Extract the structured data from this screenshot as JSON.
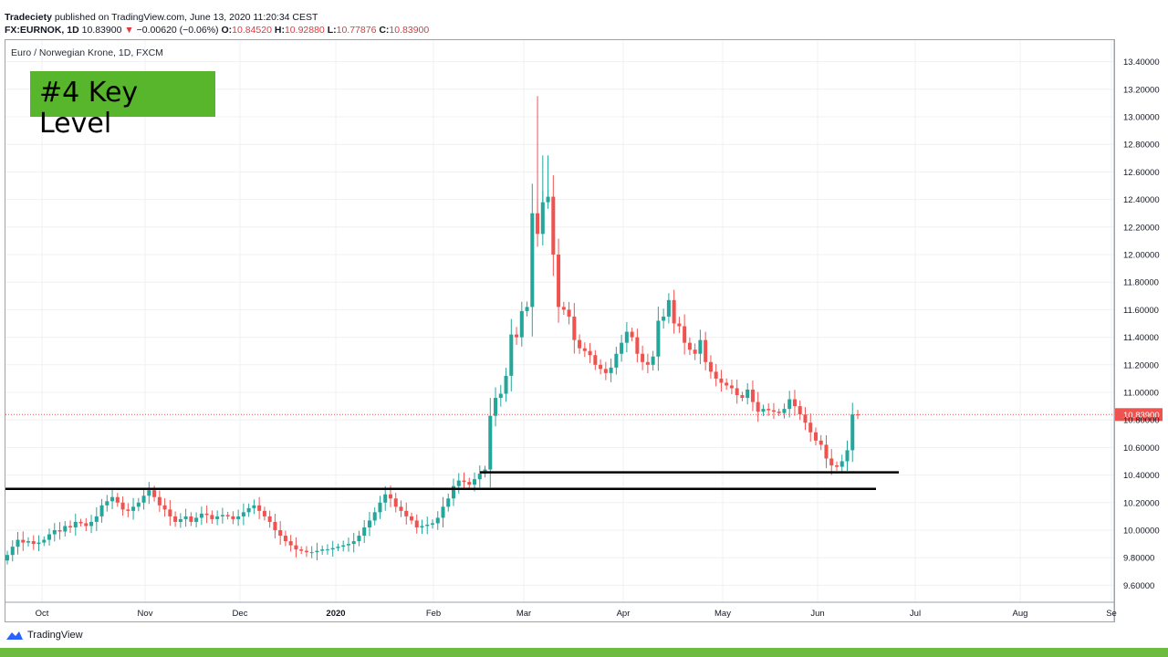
{
  "header": {
    "publisher": "Tradeciety",
    "published_text": "published on TradingView.com, June 13, 2020 11:20:34 CEST",
    "symbol": "FX:EURNOK, 1D",
    "last": "10.83900",
    "change": "−0.00620 (−0.06%)",
    "o_label": "O:",
    "o_value": "10.84520",
    "h_label": "H:",
    "h_value": "10.92880",
    "l_label": "L:",
    "l_value": "10.77876",
    "c_label": "C:",
    "c_value": "10.83900"
  },
  "chart_label": "Euro / Norwegian Krone, 1D, FXCM",
  "annotation": "#4 Key Level",
  "footer": {
    "brand": "TradingView"
  },
  "colors": {
    "up": "#26a69a",
    "down": "#ef5350",
    "annotation_bg": "#58b62c",
    "footer_bar": "#6dbb3f"
  },
  "chart_data": {
    "type": "candlestick",
    "title": "Euro / Norwegian Krone, 1D, FXCM",
    "x_labels": [
      "Oct",
      "Nov",
      "Dec",
      "2020",
      "Feb",
      "Mar",
      "Apr",
      "May",
      "Jun",
      "Jul",
      "Aug",
      "Se"
    ],
    "y_ticks": [
      "13.40000",
      "13.20000",
      "13.00000",
      "12.80000",
      "12.60000",
      "12.40000",
      "12.20000",
      "12.00000",
      "11.80000",
      "11.60000",
      "11.40000",
      "11.20000",
      "11.00000",
      "10.80000",
      "10.60000",
      "10.40000",
      "10.20000",
      "10.00000",
      "9.80000",
      "9.60000"
    ],
    "ylim": [
      9.5,
      13.5
    ],
    "last_price": 10.839,
    "last_price_label": "10.83900",
    "key_levels": [
      10.3,
      10.42
    ],
    "closes": [
      9.82,
      9.88,
      9.93,
      9.91,
      9.92,
      9.9,
      9.91,
      9.93,
      9.97,
      10.0,
      9.99,
      10.03,
      10.02,
      10.06,
      10.05,
      10.03,
      10.06,
      10.1,
      10.18,
      10.21,
      10.24,
      10.2,
      10.15,
      10.14,
      10.17,
      10.2,
      10.25,
      10.29,
      10.24,
      10.18,
      10.15,
      10.1,
      10.06,
      10.08,
      10.1,
      10.06,
      10.09,
      10.12,
      10.11,
      10.08,
      10.1,
      10.11,
      10.1,
      10.08,
      10.1,
      10.13,
      10.16,
      10.18,
      10.14,
      10.1,
      10.06,
      10.0,
      9.96,
      9.92,
      9.89,
      9.86,
      9.85,
      9.84,
      9.84,
      9.85,
      9.86,
      9.86,
      9.87,
      9.88,
      9.89,
      9.9,
      9.92,
      9.96,
      10.02,
      10.07,
      10.13,
      10.2,
      10.26,
      10.23,
      10.17,
      10.14,
      10.1,
      10.07,
      10.02,
      10.03,
      10.04,
      10.05,
      10.09,
      10.17,
      10.23,
      10.32,
      10.36,
      10.35,
      10.33,
      10.37,
      10.41,
      10.44,
      10.83,
      10.96,
      10.99,
      11.12,
      11.42,
      11.4,
      11.59,
      11.62,
      12.3,
      12.15,
      12.38,
      12.42,
      12.0,
      11.62,
      11.6,
      11.55,
      11.38,
      11.32,
      11.3,
      11.27,
      11.2,
      11.17,
      11.14,
      11.18,
      11.28,
      11.36,
      11.44,
      11.4,
      11.28,
      11.22,
      11.2,
      11.26,
      11.52,
      11.55,
      11.67,
      11.5,
      11.48,
      11.36,
      11.31,
      11.28,
      11.38,
      11.22,
      11.15,
      11.1,
      11.07,
      11.05,
      11.03,
      10.98,
      10.96,
      11.02,
      10.93,
      10.86,
      10.88,
      10.87,
      10.86,
      10.85,
      10.88,
      10.95,
      10.9,
      10.84,
      10.78,
      10.71,
      10.65,
      10.62,
      10.52,
      10.47,
      10.46,
      10.5,
      10.58,
      10.84,
      10.839
    ]
  }
}
